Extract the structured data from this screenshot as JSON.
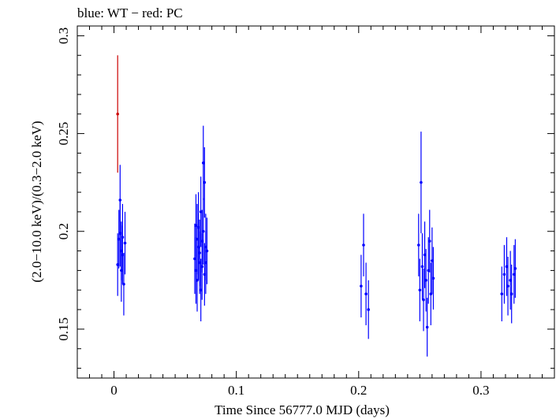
{
  "chart_data": {
    "type": "scatter",
    "title": "blue: WT − red: PC",
    "xlabel": "Time Since 56777.0 MJD (days)",
    "ylabel": "(2.0−10.0 keV)/(0.3−2.0 keV)",
    "xlim": [
      -0.03,
      0.36
    ],
    "ylim": [
      0.125,
      0.305
    ],
    "x_ticks": [
      0,
      0.1,
      0.2,
      0.3
    ],
    "x_tick_labels": [
      "0",
      "0.1",
      "0.2",
      "0.3"
    ],
    "y_ticks": [
      0.15,
      0.2,
      0.25,
      0.3
    ],
    "y_tick_labels": [
      "0.15",
      "0.2",
      "0.25",
      "0.3"
    ],
    "grid": false,
    "series": [
      {
        "color": "#0000ff",
        "x": [
          0.003,
          0.004,
          0.005,
          0.005,
          0.006,
          0.006,
          0.007,
          0.007,
          0.008,
          0.009,
          0.066,
          0.067,
          0.067,
          0.068,
          0.068,
          0.069,
          0.069,
          0.07,
          0.07,
          0.071,
          0.071,
          0.072,
          0.072,
          0.073,
          0.073,
          0.074,
          0.074,
          0.075,
          0.075,
          0.076,
          0.202,
          0.204,
          0.206,
          0.208,
          0.249,
          0.25,
          0.251,
          0.252,
          0.253,
          0.254,
          0.255,
          0.256,
          0.257,
          0.258,
          0.259,
          0.26,
          0.261,
          0.317,
          0.319,
          0.321,
          0.322,
          0.324,
          0.325,
          0.327,
          0.328
        ],
        "y": [
          0.183,
          0.196,
          0.216,
          0.199,
          0.19,
          0.18,
          0.197,
          0.188,
          0.173,
          0.194,
          0.186,
          0.203,
          0.18,
          0.196,
          0.175,
          0.192,
          0.202,
          0.184,
          0.189,
          0.17,
          0.21,
          0.182,
          0.195,
          0.235,
          0.2,
          0.225,
          0.178,
          0.192,
          0.184,
          0.19,
          0.172,
          0.193,
          0.168,
          0.16,
          0.193,
          0.17,
          0.225,
          0.182,
          0.165,
          0.188,
          0.175,
          0.151,
          0.18,
          0.195,
          0.168,
          0.185,
          0.176,
          0.168,
          0.178,
          0.182,
          0.172,
          0.175,
          0.168,
          0.178,
          0.181
        ],
        "yerr": [
          0.016,
          0.015,
          0.018,
          0.017,
          0.015,
          0.016,
          0.017,
          0.015,
          0.016,
          0.016,
          0.018,
          0.016,
          0.017,
          0.018,
          0.016,
          0.017,
          0.018,
          0.016,
          0.017,
          0.016,
          0.018,
          0.017,
          0.016,
          0.019,
          0.017,
          0.018,
          0.016,
          0.017,
          0.016,
          0.017,
          0.016,
          0.016,
          0.016,
          0.015,
          0.016,
          0.016,
          0.026,
          0.017,
          0.016,
          0.017,
          0.016,
          0.015,
          0.017,
          0.016,
          0.016,
          0.017,
          0.016,
          0.014,
          0.015,
          0.015,
          0.015,
          0.015,
          0.015,
          0.015,
          0.015
        ]
      },
      {
        "color": "#cc0000",
        "x": [
          0.003
        ],
        "y": [
          0.26
        ],
        "yerr": [
          0.03
        ]
      }
    ]
  }
}
